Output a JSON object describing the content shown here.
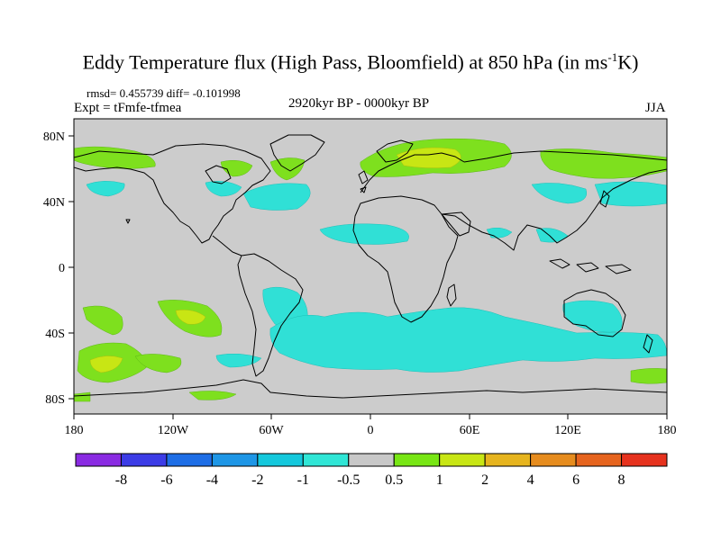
{
  "title": {
    "main": "Eddy Temperature flux (High Pass, Bloomfield) at 850 hPa (in ms",
    "unit_exp": "-1",
    "unit_end": "K)"
  },
  "stats": "rmsd= 0.455739 diff= -0.101998",
  "experiment": "Expt = tFmfe-tfmea",
  "period": "2920kyr BP - 0000kyr BP",
  "season": "JJA",
  "axes": {
    "x_ticks": [
      "180",
      "120W",
      "60W",
      "0",
      "60E",
      "120E",
      "180"
    ],
    "y_ticks": [
      "80N",
      "40N",
      "0",
      "40S",
      "80S"
    ]
  },
  "colorbar": {
    "labels": [
      "-8",
      "-6",
      "-4",
      "-2",
      "-1",
      "-0.5",
      "0.5",
      "1",
      "2",
      "4",
      "6",
      "8"
    ],
    "colors": [
      "#8a2be2",
      "#3c3ce6",
      "#1e6ee6",
      "#1e96e6",
      "#14c8dc",
      "#30e6d6",
      "#c8c8c8",
      "#78e614",
      "#c8e614",
      "#e6b41e",
      "#e68c1e",
      "#e6641e",
      "#e6321e"
    ]
  },
  "colors": {
    "ocean_land_bg": "#cccccc",
    "coast": "#000000"
  }
}
